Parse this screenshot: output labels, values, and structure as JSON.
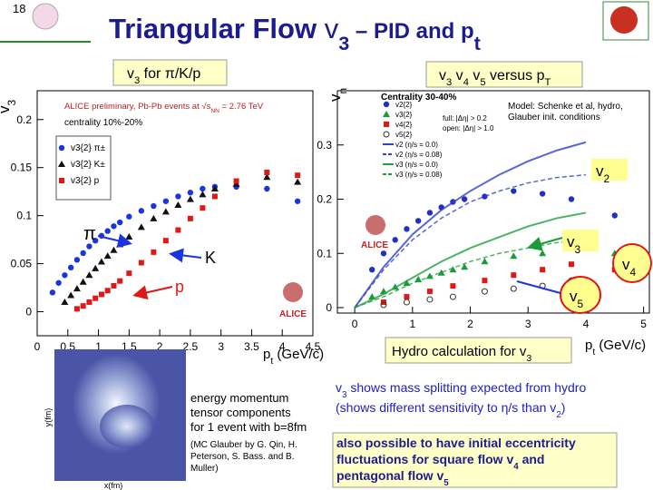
{
  "slide_number": "18",
  "title": [
    "Triangular Flow ",
    "v",
    "3",
    " – PID and p",
    "t"
  ],
  "left_box": [
    "v",
    "3",
    " for π/K/p"
  ],
  "right_box": [
    "v",
    "3",
    " v",
    "4",
    " v",
    "5",
    " versus p",
    "T"
  ],
  "logo_text": "ALICE",
  "labels": {
    "pi": "π",
    "K": "K",
    "p": "p",
    "v2": [
      "v",
      "2"
    ],
    "v3": [
      "v",
      "3"
    ],
    "v4": [
      "v",
      "4"
    ],
    "v5": [
      "v",
      "5"
    ]
  },
  "hydro_box": [
    "Hydro calculation for v",
    "3"
  ],
  "inset": {
    "xlabel": "x(fm)",
    "ylabel": "y(fm)",
    "caption": [
      "energy momentum",
      "tensor components",
      "for 1 event with b=8fm"
    ],
    "credit": [
      "(MC Glauber by G. Qin, H.",
      "Peterson, S. Bass. and B.",
      "Muller)"
    ]
  },
  "text_right": {
    "line1": [
      "v",
      "3",
      " shows mass splitting expected from hydro"
    ],
    "line2": [
      "(shows different sensitivity to η/s than v",
      "2",
      ")"
    ]
  },
  "box_text": {
    "line1": "also possible to have initial eccentricity",
    "line2": [
      "fluctuations for square flow v",
      "4",
      " and"
    ],
    "line3": [
      "pentagonal flow v",
      "5"
    ]
  },
  "chart_data": [
    {
      "type": "scatter",
      "subtitle": [
        "ALICE preliminary, Pb-Pb events at √s",
        "NN",
        " = 2.76 TeV"
      ],
      "annotation": "centrality 10%-20%",
      "ylabel": [
        "v",
        "3"
      ],
      "xlabel": [
        "p",
        "t",
        " (GeV/c)"
      ],
      "xlim": [
        0,
        4.5
      ],
      "ylim": [
        -0.025,
        0.23
      ],
      "xticks": [
        0,
        0.5,
        1,
        1.5,
        2,
        2.5,
        3,
        3.5,
        4,
        4.5
      ],
      "yticks": [
        0,
        0.05,
        0.1,
        0.15,
        0.2
      ],
      "series": [
        {
          "name": "v3{2} π±",
          "color": "#1a35e0",
          "marker": "circle",
          "x": [
            0.25,
            0.35,
            0.45,
            0.55,
            0.65,
            0.75,
            0.85,
            0.95,
            1.05,
            1.15,
            1.25,
            1.35,
            1.5,
            1.7,
            1.9,
            2.1,
            2.3,
            2.5,
            2.7,
            2.9,
            3.25,
            3.75,
            4.25
          ],
          "values": [
            0.02,
            0.03,
            0.038,
            0.046,
            0.054,
            0.061,
            0.068,
            0.074,
            0.079,
            0.084,
            0.089,
            0.093,
            0.099,
            0.105,
            0.11,
            0.115,
            0.12,
            0.124,
            0.128,
            0.13,
            0.13,
            0.128,
            0.115
          ]
        },
        {
          "name": "v3{2} K±",
          "color": "#111111",
          "marker": "triangle",
          "x": [
            0.45,
            0.55,
            0.65,
            0.75,
            0.85,
            0.95,
            1.05,
            1.15,
            1.25,
            1.35,
            1.5,
            1.7,
            1.9,
            2.1,
            2.3,
            2.5,
            2.7,
            2.9,
            3.25,
            3.75,
            4.25
          ],
          "values": [
            0.01,
            0.017,
            0.024,
            0.031,
            0.038,
            0.045,
            0.052,
            0.058,
            0.064,
            0.07,
            0.078,
            0.088,
            0.097,
            0.104,
            0.111,
            0.117,
            0.122,
            0.128,
            0.133,
            0.14,
            0.135
          ]
        },
        {
          "name": "v3{2} p",
          "color": "#e01818",
          "marker": "square",
          "x": [
            0.65,
            0.75,
            0.85,
            0.95,
            1.05,
            1.15,
            1.25,
            1.35,
            1.5,
            1.7,
            1.9,
            2.1,
            2.3,
            2.5,
            2.7,
            2.9,
            3.25,
            3.75,
            4.25
          ],
          "values": [
            0.003,
            0.006,
            0.01,
            0.014,
            0.018,
            0.022,
            0.027,
            0.032,
            0.04,
            0.051,
            0.062,
            0.074,
            0.085,
            0.097,
            0.108,
            0.12,
            0.136,
            0.145,
            0.142
          ]
        }
      ]
    },
    {
      "type": "scatter",
      "legend_title": "Centrality 30-40%",
      "model": [
        "Model: Schenke et al, hydro,",
        "Glauber init. conditions"
      ],
      "notes": [
        "full: |Δη| > 0.2",
        "open: |Δη| > 1.0"
      ],
      "ylabel": [
        "v",
        "n"
      ],
      "xlabel": [
        "p",
        "t",
        " (GeV/c)"
      ],
      "xlim": [
        -0.3,
        5.1
      ],
      "ylim": [
        -0.01,
        0.4
      ],
      "xticks": [
        0,
        1,
        2,
        3,
        4,
        5
      ],
      "yticks": [
        0,
        0.1,
        0.2,
        0.3
      ],
      "series": [
        {
          "name": "v2{2}",
          "color": "#2030c0",
          "marker": "circle",
          "x": [
            0.3,
            0.5,
            0.7,
            0.9,
            1.1,
            1.3,
            1.5,
            1.7,
            1.9,
            2.25,
            2.75,
            3.25,
            3.75,
            4.5
          ],
          "values": [
            0.07,
            0.1,
            0.125,
            0.145,
            0.16,
            0.175,
            0.185,
            0.195,
            0.2,
            0.205,
            0.215,
            0.21,
            0.2,
            0.17
          ]
        },
        {
          "name": "v3{2}",
          "color": "#1a9a3a",
          "marker": "triangle",
          "x": [
            0.3,
            0.5,
            0.7,
            0.9,
            1.1,
            1.3,
            1.5,
            1.7,
            1.9,
            2.25,
            2.75,
            3.25,
            3.75,
            4.5
          ],
          "values": [
            0.02,
            0.03,
            0.038,
            0.045,
            0.052,
            0.058,
            0.064,
            0.07,
            0.075,
            0.085,
            0.095,
            0.1,
            0.11,
            0.1
          ]
        },
        {
          "name": "v4{2}",
          "color": "#e01818",
          "marker": "square",
          "x": [
            0.5,
            0.9,
            1.3,
            1.7,
            2.25,
            2.75,
            3.25,
            3.75,
            4.5
          ],
          "values": [
            0.01,
            0.02,
            0.03,
            0.04,
            0.05,
            0.06,
            0.07,
            0.08,
            0.07
          ]
        },
        {
          "name": "v5{2}",
          "color": "#333333",
          "marker": "open",
          "x": [
            0.5,
            0.9,
            1.3,
            1.7,
            2.25,
            2.75,
            3.25,
            3.75
          ],
          "values": [
            0.005,
            0.01,
            0.015,
            0.02,
            0.03,
            0.035,
            0.04,
            0.05
          ]
        },
        {
          "name": "v2 (η/s = 0.0)",
          "color": "#3040c8",
          "marker": "line",
          "x": [
            0,
            0.5,
            1,
            1.5,
            2,
            2.5,
            3,
            3.5,
            4
          ],
          "values": [
            0,
            0.075,
            0.135,
            0.18,
            0.215,
            0.245,
            0.27,
            0.29,
            0.305
          ]
        },
        {
          "name": "v2 (η/s = 0.08)",
          "color": "#3040c8",
          "marker": "dash",
          "x": [
            0,
            0.5,
            1,
            1.5,
            2,
            2.5,
            3,
            3.5,
            4
          ],
          "values": [
            0,
            0.07,
            0.125,
            0.165,
            0.195,
            0.215,
            0.23,
            0.24,
            0.245
          ]
        },
        {
          "name": "v3 (η/s = 0.0)",
          "color": "#20a040",
          "marker": "line",
          "x": [
            0,
            0.5,
            1,
            1.5,
            2,
            2.5,
            3,
            3.5,
            4
          ],
          "values": [
            0,
            0.025,
            0.055,
            0.085,
            0.11,
            0.13,
            0.15,
            0.165,
            0.175
          ]
        },
        {
          "name": "v3 (η/s = 0.08)",
          "color": "#20a040",
          "marker": "dash",
          "x": [
            0,
            0.5,
            1,
            1.5,
            2,
            2.5,
            3,
            3.5,
            4
          ],
          "values": [
            0,
            0.02,
            0.045,
            0.065,
            0.085,
            0.1,
            0.11,
            0.12,
            0.125
          ]
        }
      ]
    }
  ]
}
